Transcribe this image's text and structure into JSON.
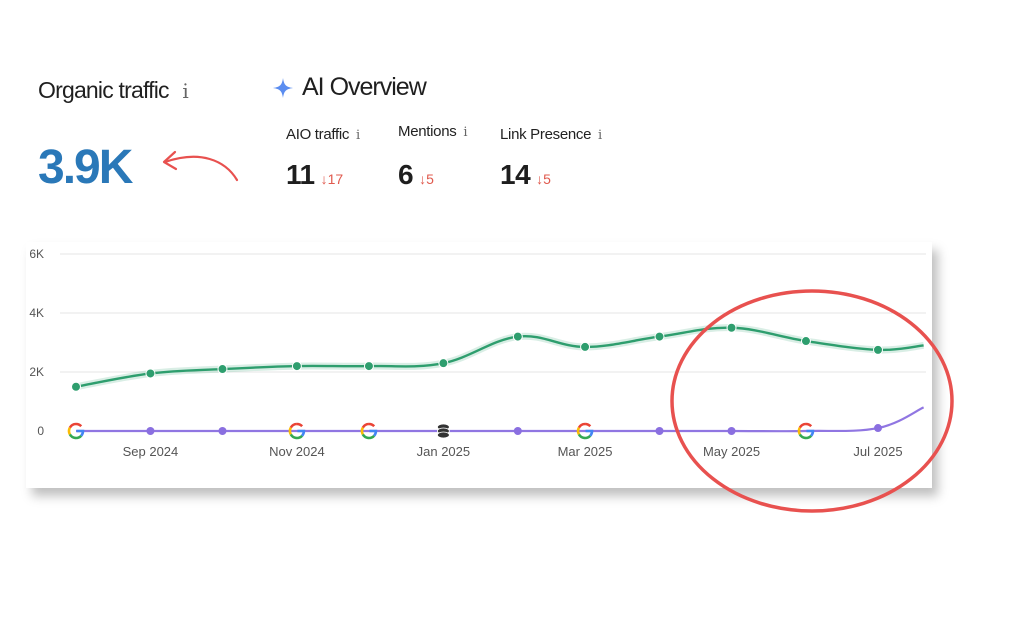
{
  "organic": {
    "title": "Organic traffic",
    "info": "i",
    "value": "3.9K",
    "value_color": "#2a78b8"
  },
  "ai_overview": {
    "title": "AI Overview",
    "icon": "sparkle-icon",
    "metrics": [
      {
        "label": "AIO traffic",
        "info": "i",
        "value": "11",
        "delta": "17",
        "direction": "down"
      },
      {
        "label": "Mentions",
        "info": "i",
        "value": "6",
        "delta": "5",
        "direction": "down"
      },
      {
        "label": "Link Presence",
        "info": "i",
        "value": "14",
        "delta": "5",
        "direction": "down"
      }
    ]
  },
  "colors": {
    "organic_line": "#2e9e6e",
    "aio_line": "#8a6fe0",
    "annotation": "#e8514f",
    "down_arrow": "#e05a4e"
  },
  "chart_data": {
    "type": "line",
    "y_ticks": [
      "0",
      "2K",
      "4K",
      "6K"
    ],
    "ylim": [
      0,
      6000
    ],
    "x_tick_labels": [
      "Sep 2024",
      "Nov 2024",
      "Jan 2025",
      "Mar 2025",
      "May 2025",
      "Jul 2025"
    ],
    "grid": true,
    "series": [
      {
        "name": "Organic traffic",
        "color": "#2e9e6e",
        "points": [
          [
            "2024-08-01",
            1500
          ],
          [
            "2024-09-01",
            1950
          ],
          [
            "2024-10-01",
            2100
          ],
          [
            "2024-11-01",
            2200
          ],
          [
            "2024-12-01",
            2200
          ],
          [
            "2025-01-01",
            2300
          ],
          [
            "2025-02-01",
            3200
          ],
          [
            "2025-03-01",
            2850
          ],
          [
            "2025-04-01",
            3200
          ],
          [
            "2025-05-01",
            3500
          ],
          [
            "2025-06-01",
            3050
          ],
          [
            "2025-07-01",
            2750
          ],
          [
            "2025-07-20",
            2900
          ]
        ]
      },
      {
        "name": "AI Overview",
        "color": "#8a6fe0",
        "points": [
          [
            "2024-08-01",
            0
          ],
          [
            "2024-09-01",
            0
          ],
          [
            "2024-10-01",
            0
          ],
          [
            "2024-11-01",
            0
          ],
          [
            "2024-12-01",
            0
          ],
          [
            "2025-01-01",
            0
          ],
          [
            "2025-02-01",
            0
          ],
          [
            "2025-03-01",
            0
          ],
          [
            "2025-04-01",
            0
          ],
          [
            "2025-05-01",
            0
          ],
          [
            "2025-06-01",
            0
          ],
          [
            "2025-07-01",
            100
          ],
          [
            "2025-07-20",
            800
          ]
        ]
      }
    ],
    "event_markers": [
      {
        "date": "2024-08-01",
        "icon": "google-icon"
      },
      {
        "date": "2024-11-01",
        "icon": "google-icon"
      },
      {
        "date": "2024-12-01",
        "icon": "google-icon"
      },
      {
        "date": "2025-01-01",
        "icon": "database-icon"
      },
      {
        "date": "2025-03-01",
        "icon": "google-icon"
      },
      {
        "date": "2025-06-01",
        "icon": "google-icon"
      }
    ]
  }
}
